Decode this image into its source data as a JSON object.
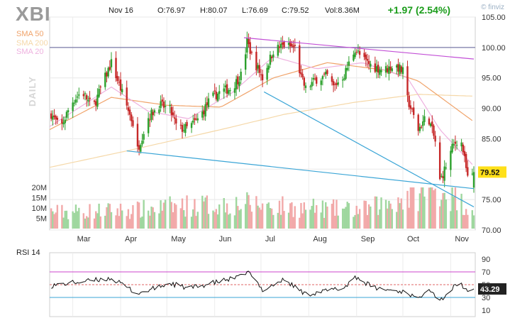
{
  "header": {
    "ticker": "XBI",
    "date": "Nov 16",
    "open": "O:76.97",
    "high": "H:80.07",
    "low": "L:76.69",
    "close": "C:79.52",
    "volume": "Vol:8.36M",
    "change": "+1.97 (2.54%)",
    "brand": "© finviz"
  },
  "sma_legend": [
    {
      "label": "SMA 50",
      "color": "#f0a36a"
    },
    {
      "label": "SMA 200",
      "color": "#f5d8a8"
    },
    {
      "label": "SMA 20",
      "color": "#eeb1df"
    }
  ],
  "timeframe_label": "DAILY",
  "rsi_title": "RSI 14",
  "last_price_label": "79.52",
  "colors": {
    "up": "#2ca02c",
    "down": "#c62828",
    "vol_up": "#9fd79f",
    "vol_down": "#f2a9a9",
    "trendline_purple": "#c24fd6",
    "trendline_blue": "#3aa5d6",
    "hline": "#7a7aa8",
    "rsi_line": "#111111",
    "rsi_70": "#cc44cc",
    "rsi_50": "#e06666",
    "rsi_30": "#3aa5d6",
    "last_price_bg": "#ffe01a"
  },
  "chart_data": {
    "type": "candlestick",
    "ticker": "XBI",
    "price_axis": {
      "ticks": [
        "105.00",
        "100.00",
        "95.00",
        "90.00",
        "85.00",
        "80.00",
        "75.00",
        "70.00"
      ],
      "ylim": [
        70,
        105
      ]
    },
    "volume_axis": {
      "ticks": [
        "20M",
        "15M",
        "10M",
        "5M"
      ]
    },
    "month_labels": [
      "Mar",
      "Apr",
      "May",
      "Jun",
      "Jul",
      "Aug",
      "Sep",
      "Oct",
      "Nov"
    ],
    "rsi_axis": {
      "ticks": [
        "90",
        "70",
        "50",
        "30",
        "10"
      ],
      "ylim": [
        0,
        100
      ]
    },
    "last_close": 79.52,
    "last_rsi": "43.29",
    "horizontal_line": 100.0,
    "trendlines": [
      {
        "name": "upper",
        "points": [
          {
            "x": "Jun 20",
            "y": 101.6
          },
          {
            "x": "Nov 16",
            "y": 98.1
          }
        ]
      },
      {
        "name": "lower-long",
        "points": [
          {
            "x": "Apr 5",
            "y": 83.0
          },
          {
            "x": "Nov 16",
            "y": 76.8
          }
        ]
      },
      {
        "name": "lower-steep",
        "points": [
          {
            "x": "Jul 3",
            "y": 92.7
          },
          {
            "x": "Nov 16",
            "y": 73.8
          }
        ]
      }
    ],
    "close_keypoints": [
      {
        "x": "Feb 14",
        "close": 89.5
      },
      {
        "x": "Feb 21",
        "close": 86.6
      },
      {
        "x": "Feb 28",
        "close": 90.9
      },
      {
        "x": "Mar 7",
        "close": 92.8
      },
      {
        "x": "Mar 14",
        "close": 90.0
      },
      {
        "x": "Mar 21",
        "close": 94.5
      },
      {
        "x": "Mar 26",
        "close": 97.5
      },
      {
        "x": "Apr 2",
        "close": 92.5
      },
      {
        "x": "Apr 9",
        "close": 87.5
      },
      {
        "x": "Apr 12",
        "close": 83.2
      },
      {
        "x": "Apr 19",
        "close": 88.5
      },
      {
        "x": "Apr 26",
        "close": 90.6
      },
      {
        "x": "May 3",
        "close": 89.8
      },
      {
        "x": "May 8",
        "close": 86.5
      },
      {
        "x": "May 15",
        "close": 86.8
      },
      {
        "x": "May 22",
        "close": 88.4
      },
      {
        "x": "May 29",
        "close": 91.5
      },
      {
        "x": "Jun 5",
        "close": 92.8
      },
      {
        "x": "Jun 12",
        "close": 93.3
      },
      {
        "x": "Jun 19",
        "close": 95.8
      },
      {
        "x": "Jun 22",
        "close": 101.0
      },
      {
        "x": "Jun 26",
        "close": 98.0
      },
      {
        "x": "Jul 2",
        "close": 95.0
      },
      {
        "x": "Jul 9",
        "close": 99.5
      },
      {
        "x": "Jul 16",
        "close": 100.4
      },
      {
        "x": "Jul 23",
        "close": 99.9
      },
      {
        "x": "Jul 27",
        "close": 95.0
      },
      {
        "x": "Jul 30",
        "close": 93.2
      },
      {
        "x": "Aug 6",
        "close": 94.8
      },
      {
        "x": "Aug 13",
        "close": 95.3
      },
      {
        "x": "Aug 17",
        "close": 93.5
      },
      {
        "x": "Aug 24",
        "close": 95.5
      },
      {
        "x": "Aug 31",
        "close": 99.8
      },
      {
        "x": "Sep 5",
        "close": 98.0
      },
      {
        "x": "Sep 12",
        "close": 96.8
      },
      {
        "x": "Sep 19",
        "close": 96.3
      },
      {
        "x": "Sep 26",
        "close": 97.1
      },
      {
        "x": "Oct 1",
        "close": 96.0
      },
      {
        "x": "Oct 4",
        "close": 91.5
      },
      {
        "x": "Oct 11",
        "close": 86.5
      },
      {
        "x": "Oct 17",
        "close": 89.0
      },
      {
        "x": "Oct 22",
        "close": 84.5
      },
      {
        "x": "Oct 25",
        "close": 78.0
      },
      {
        "x": "Oct 29",
        "close": 80.5
      },
      {
        "x": "Nov 2",
        "close": 83.5
      },
      {
        "x": "Nov 7",
        "close": 85.5
      },
      {
        "x": "Nov 9",
        "close": 83.0
      },
      {
        "x": "Nov 13",
        "close": 77.0
      },
      {
        "x": "Nov 16",
        "close": 79.52
      }
    ],
    "sma20_keypoints": [
      {
        "x": "Feb 14",
        "y": 87.0
      },
      {
        "x": "Mar 26",
        "y": 93.5
      },
      {
        "x": "Apr 19",
        "y": 89.5
      },
      {
        "x": "May 15",
        "y": 88.3
      },
      {
        "x": "Jun 12",
        "y": 92.5
      },
      {
        "x": "Jul 9",
        "y": 98.5
      },
      {
        "x": "Aug 6",
        "y": 96.5
      },
      {
        "x": "Sep 5",
        "y": 97.5
      },
      {
        "x": "Oct 4",
        "y": 95.0
      },
      {
        "x": "Oct 25",
        "y": 86.5
      },
      {
        "x": "Nov 16",
        "y": 80.5
      }
    ],
    "sma50_keypoints": [
      {
        "x": "Feb 14",
        "y": 86.5
      },
      {
        "x": "Mar 26",
        "y": 91.8
      },
      {
        "x": "May 1",
        "y": 90.5
      },
      {
        "x": "Jun 5",
        "y": 90.2
      },
      {
        "x": "Jul 9",
        "y": 95.0
      },
      {
        "x": "Aug 13",
        "y": 97.5
      },
      {
        "x": "Sep 19",
        "y": 96.3
      },
      {
        "x": "Oct 11",
        "y": 94.5
      },
      {
        "x": "Nov 16",
        "y": 87.8
      }
    ],
    "sma200_keypoints": [
      {
        "x": "Feb 14",
        "y": 80.3
      },
      {
        "x": "Apr 5",
        "y": 83.0
      },
      {
        "x": "Jun 5",
        "y": 86.5
      },
      {
        "x": "Jul 16",
        "y": 89.0
      },
      {
        "x": "Aug 31",
        "y": 91.0
      },
      {
        "x": "Oct 11",
        "y": 92.3
      },
      {
        "x": "Nov 16",
        "y": 92.0
      }
    ],
    "rsi_keypoints": [
      {
        "x": "Feb 14",
        "y": 48
      },
      {
        "x": "Mar 1",
        "y": 53
      },
      {
        "x": "Mar 26",
        "y": 60
      },
      {
        "x": "Apr 12",
        "y": 36
      },
      {
        "x": "May 3",
        "y": 52
      },
      {
        "x": "May 15",
        "y": 44
      },
      {
        "x": "Jun 19",
        "y": 63
      },
      {
        "x": "Jun 22",
        "y": 72
      },
      {
        "x": "Jul 2",
        "y": 42
      },
      {
        "x": "Jul 16",
        "y": 58
      },
      {
        "x": "Jul 30",
        "y": 35
      },
      {
        "x": "Aug 24",
        "y": 45
      },
      {
        "x": "Aug 31",
        "y": 63
      },
      {
        "x": "Sep 12",
        "y": 45
      },
      {
        "x": "Oct 4",
        "y": 38
      },
      {
        "x": "Oct 11",
        "y": 26
      },
      {
        "x": "Oct 17",
        "y": 48
      },
      {
        "x": "Oct 25",
        "y": 25
      },
      {
        "x": "Nov 7",
        "y": 55
      },
      {
        "x": "Nov 13",
        "y": 33
      },
      {
        "x": "Nov 16",
        "y": 43.3
      }
    ],
    "volume_keypoints_millions": [
      {
        "x": "Feb 14",
        "y": 8
      },
      {
        "x": "Apr 12",
        "y": 9
      },
      {
        "x": "May 8",
        "y": 11
      },
      {
        "x": "Jun 22",
        "y": 12
      },
      {
        "x": "Jul 27",
        "y": 10
      },
      {
        "x": "Sep 5",
        "y": 9
      },
      {
        "x": "Oct 25",
        "y": 20
      },
      {
        "x": "Nov 16",
        "y": 8.4
      }
    ]
  }
}
